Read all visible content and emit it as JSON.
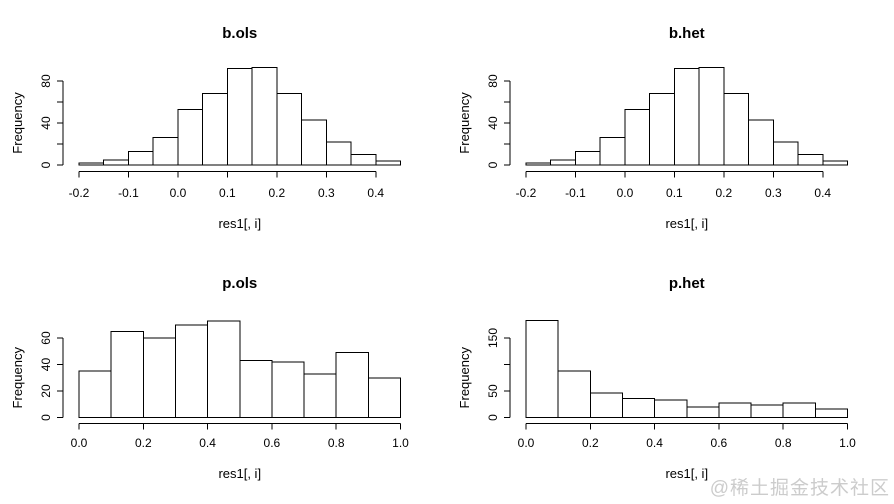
{
  "watermark": "@稀土掘金技术社区",
  "colors": {
    "background": "#ffffff",
    "bar_fill": "#ffffff",
    "bar_stroke": "#000000",
    "axis": "#000000",
    "text": "#000000",
    "watermark": "#cccccc"
  },
  "chart_data": [
    {
      "id": "b-ols",
      "type": "bar",
      "subtype": "histogram",
      "title": "b.ols",
      "xlabel": "res1[, i]",
      "ylabel": "Frequency",
      "bin_start": -0.2,
      "bin_width": 0.05,
      "counts": [
        2,
        5,
        13,
        26,
        53,
        68,
        92,
        93,
        68,
        43,
        22,
        10,
        4
      ],
      "xlim": [
        -0.2,
        0.45
      ],
      "ylim": [
        0,
        80
      ],
      "x_ticks": [
        -0.2,
        -0.1,
        0.0,
        0.1,
        0.2,
        0.3,
        0.4
      ],
      "x_tick_labels": [
        "-0.2",
        "-0.1",
        "0.0",
        "0.1",
        "0.2",
        "0.3",
        "0.4"
      ],
      "y_ticks": [
        0,
        20,
        40,
        60,
        80
      ],
      "y_tick_labels": [
        "0",
        "",
        "40",
        "",
        "80"
      ],
      "grid": false,
      "legend": false
    },
    {
      "id": "b-het",
      "type": "bar",
      "subtype": "histogram",
      "title": "b.het",
      "xlabel": "res1[, i]",
      "ylabel": "Frequency",
      "bin_start": -0.2,
      "bin_width": 0.05,
      "counts": [
        2,
        5,
        13,
        26,
        53,
        68,
        92,
        93,
        68,
        43,
        22,
        10,
        4
      ],
      "xlim": [
        -0.2,
        0.45
      ],
      "ylim": [
        0,
        80
      ],
      "x_ticks": [
        -0.2,
        -0.1,
        0.0,
        0.1,
        0.2,
        0.3,
        0.4
      ],
      "x_tick_labels": [
        "-0.2",
        "-0.1",
        "0.0",
        "0.1",
        "0.2",
        "0.3",
        "0.4"
      ],
      "y_ticks": [
        0,
        20,
        40,
        60,
        80
      ],
      "y_tick_labels": [
        "0",
        "",
        "40",
        "",
        "80"
      ],
      "grid": false,
      "legend": false
    },
    {
      "id": "p-ols",
      "type": "bar",
      "subtype": "histogram",
      "title": "p.ols",
      "xlabel": "res1[, i]",
      "ylabel": "Frequency",
      "bin_start": 0.0,
      "bin_width": 0.1,
      "counts": [
        35,
        65,
        60,
        70,
        73,
        43,
        42,
        33,
        49,
        30
      ],
      "xlim": [
        0.0,
        1.0
      ],
      "ylim": [
        0,
        60
      ],
      "x_ticks": [
        0.0,
        0.2,
        0.4,
        0.6,
        0.8,
        1.0
      ],
      "x_tick_labels": [
        "0.0",
        "0.2",
        "0.4",
        "0.6",
        "0.8",
        "1.0"
      ],
      "y_ticks": [
        0,
        20,
        40,
        60
      ],
      "y_tick_labels": [
        "0",
        "20",
        "40",
        "60"
      ],
      "grid": false,
      "legend": false
    },
    {
      "id": "p-het",
      "type": "bar",
      "subtype": "histogram",
      "title": "p.het",
      "xlabel": "res1[, i]",
      "ylabel": "Frequency",
      "bin_start": 0.0,
      "bin_width": 0.1,
      "counts": [
        183,
        88,
        46,
        36,
        33,
        20,
        27,
        24,
        27,
        16
      ],
      "xlim": [
        0.0,
        1.0
      ],
      "ylim": [
        0,
        150
      ],
      "x_ticks": [
        0.0,
        0.2,
        0.4,
        0.6,
        0.8,
        1.0
      ],
      "x_tick_labels": [
        "0.0",
        "0.2",
        "0.4",
        "0.6",
        "0.8",
        "1.0"
      ],
      "y_ticks": [
        0,
        50,
        100,
        150
      ],
      "y_tick_labels": [
        "0",
        "50",
        "",
        "150"
      ],
      "grid": false,
      "legend": false
    }
  ]
}
